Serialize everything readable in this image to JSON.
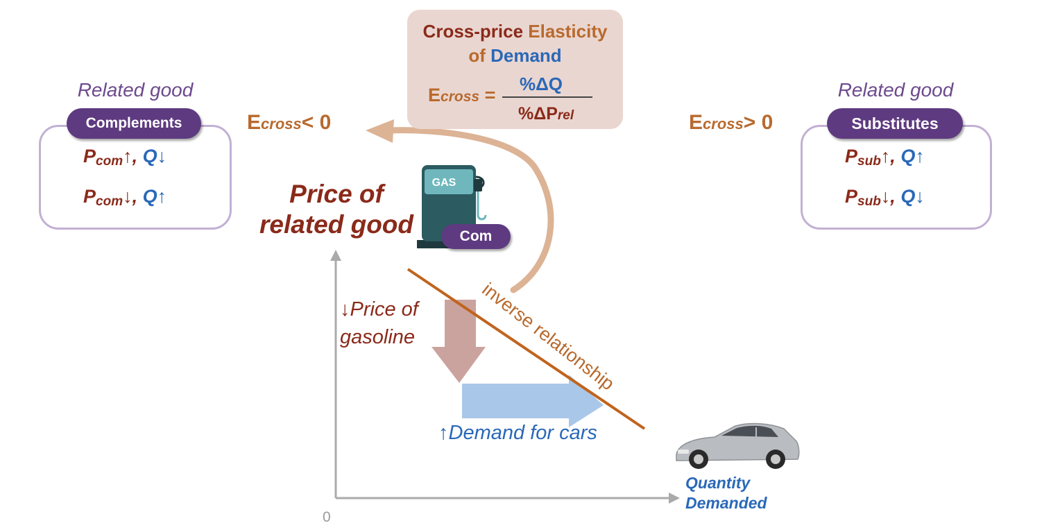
{
  "formula": {
    "title_part1": "Cross-price ",
    "title_part2": "Elasticity",
    "title_part3": "of ",
    "title_part4": "Demand",
    "lhs_symbol": "E",
    "lhs_sub": "cross",
    "equals": " =",
    "numerator": "%ΔQ",
    "denominator_symbol": "%ΔP",
    "denominator_sub": "rel"
  },
  "complements": {
    "caption": "Related good",
    "pill": "Complements",
    "rule1": {
      "p": "P",
      "sub": "com",
      "p_arrow": "↑",
      "sep": ", ",
      "q": "Q",
      "q_arrow": "↓"
    },
    "rule2": {
      "p": "P",
      "sub": "com",
      "p_arrow": "↓",
      "sep": ", ",
      "q": "Q",
      "q_arrow": "↑"
    }
  },
  "substitutes": {
    "caption": "Related good",
    "pill": "Substitutes",
    "rule1": {
      "p": "P",
      "sub": "sub",
      "p_arrow": "↑",
      "sep": ", ",
      "q": "Q",
      "q_arrow": "↑"
    },
    "rule2": {
      "p": "P",
      "sub": "sub",
      "p_arrow": "↓",
      "sep": ", ",
      "q": "Q",
      "q_arrow": "↓"
    }
  },
  "ecross_negative": {
    "symbol": "E",
    "sub": "cross",
    "relation": "< 0"
  },
  "ecross_positive": {
    "symbol": "E",
    "sub": "cross",
    "relation": "> 0"
  },
  "y_axis_label": "Price of related good",
  "gas_pump": {
    "sign": "GAS",
    "badge": "Com"
  },
  "gas_price_change": {
    "arrow": "↓",
    "line1": "Price of",
    "line2": "gasoline"
  },
  "demand_change": {
    "arrow": "↑",
    "text": "Demand for cars"
  },
  "curve_label": "inverse relationship",
  "x_axis_label": {
    "line1": "Quantity",
    "line2": "Demanded"
  },
  "origin": "0",
  "colors": {
    "maroon": "#8a2a1a",
    "orange": "#b86a2e",
    "blue": "#2a68b8",
    "purple_pill": "#5e3a80",
    "box_border": "#c2b0d3",
    "formula_bg": "#ead6d0",
    "down_arrow": "#cba39e",
    "right_arrow": "#a9c7e8",
    "curved_arrow": "#dcb395",
    "axis": "#aaaaaa"
  }
}
